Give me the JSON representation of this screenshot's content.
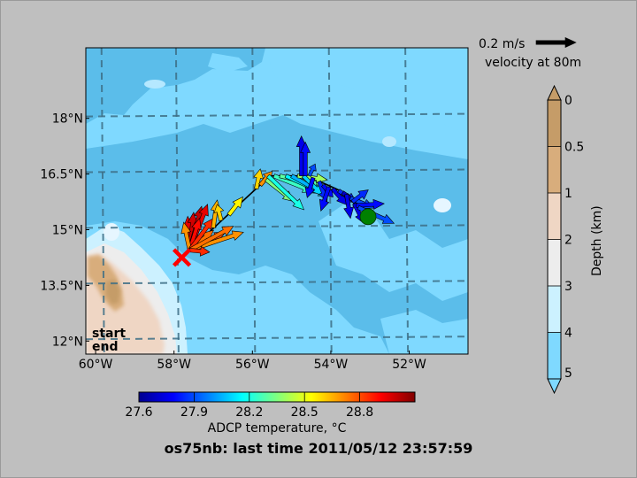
{
  "chart_data": {
    "type": "map",
    "title": "os75nb: last time 2011/05/12 23:57:59",
    "xlim": [
      -60.25,
      -50.5
    ],
    "ylim": [
      11.65,
      19.9
    ],
    "x_ticks": [
      -60,
      -58,
      -56,
      -54,
      -52
    ],
    "x_tick_labels": [
      "60°W",
      "58°W",
      "56°W",
      "54°W",
      "52°W"
    ],
    "y_ticks": [
      12,
      13.5,
      15,
      16.5,
      18
    ],
    "y_tick_labels": [
      "12°N",
      "13.5°N",
      "15°N",
      "16.5°N",
      "18°N"
    ],
    "grid": true,
    "track": [
      [
        -57.6,
        14.45
      ],
      [
        -55.55,
        16.45
      ],
      [
        -54.6,
        16.45
      ],
      [
        -53.55,
        15.95
      ],
      [
        -53.35,
        15.6
      ]
    ],
    "start": {
      "label": "start",
      "lon": -53.05,
      "lat": 15.35,
      "color": "#008000"
    },
    "end": {
      "label": "end",
      "lon": -57.8,
      "lat": 14.25,
      "color": "#ff0000"
    },
    "vectors": [
      {
        "lon": -57.6,
        "lat": 14.45,
        "u": -0.01,
        "v": 0.17,
        "t": 28.95
      },
      {
        "lon": -57.6,
        "lat": 14.45,
        "u": 0.02,
        "v": 0.19,
        "t": 28.98
      },
      {
        "lon": -57.6,
        "lat": 14.45,
        "u": 0.06,
        "v": 0.22,
        "t": 29.0
      },
      {
        "lon": -57.6,
        "lat": 14.45,
        "u": 0.09,
        "v": 0.23,
        "t": 28.95
      },
      {
        "lon": -57.6,
        "lat": 14.45,
        "u": 0.05,
        "v": 0.16,
        "t": 28.9
      },
      {
        "lon": -57.6,
        "lat": 14.45,
        "u": -0.03,
        "v": 0.14,
        "t": 28.7
      },
      {
        "lon": -57.6,
        "lat": 14.45,
        "u": 0.12,
        "v": 0.1,
        "t": 28.75
      },
      {
        "lon": -57.6,
        "lat": 14.45,
        "u": 0.18,
        "v": 0.09,
        "t": 28.8
      },
      {
        "lon": -57.6,
        "lat": 14.45,
        "u": 0.12,
        "v": 0.16,
        "t": 28.85
      },
      {
        "lon": -57.6,
        "lat": 14.45,
        "u": 0.27,
        "v": 0.09,
        "t": 28.7
      },
      {
        "lon": -57.6,
        "lat": 14.45,
        "u": 0.22,
        "v": 0.12,
        "t": 28.75
      },
      {
        "lon": -57.6,
        "lat": 14.45,
        "u": 0.1,
        "v": -0.01,
        "t": 28.85
      },
      {
        "lon": -57.0,
        "lat": 15.05,
        "u": 0.02,
        "v": 0.14,
        "t": 28.65
      },
      {
        "lon": -56.8,
        "lat": 15.25,
        "u": -0.02,
        "v": 0.08,
        "t": 28.6
      },
      {
        "lon": -56.6,
        "lat": 15.4,
        "u": 0.07,
        "v": 0.09,
        "t": 28.55
      },
      {
        "lon": -55.9,
        "lat": 16.1,
        "u": 0.02,
        "v": 0.1,
        "t": 28.6
      },
      {
        "lon": -55.8,
        "lat": 16.2,
        "u": 0.06,
        "v": 0.07,
        "t": 28.7
      },
      {
        "lon": -55.65,
        "lat": 16.35,
        "u": 0.14,
        "v": -0.11,
        "t": 28.35
      },
      {
        "lon": -55.6,
        "lat": 16.45,
        "u": 0.18,
        "v": -0.17,
        "t": 28.2
      },
      {
        "lon": -55.45,
        "lat": 16.45,
        "u": 0.2,
        "v": -0.08,
        "t": 28.25
      },
      {
        "lon": -55.3,
        "lat": 16.45,
        "u": 0.21,
        "v": -0.05,
        "t": 28.3
      },
      {
        "lon": -55.15,
        "lat": 16.45,
        "u": 0.22,
        "v": -0.1,
        "t": 28.15
      },
      {
        "lon": -55.0,
        "lat": 16.45,
        "u": 0.16,
        "v": -0.09,
        "t": 28.05
      },
      {
        "lon": -54.85,
        "lat": 16.45,
        "u": 0.15,
        "v": -0.02,
        "t": 28.4
      },
      {
        "lon": -54.7,
        "lat": 16.45,
        "u": 0.1,
        "v": -0.1,
        "t": 28.1
      },
      {
        "lon": -54.75,
        "lat": 16.45,
        "u": 0.0,
        "v": 0.2,
        "t": 27.75
      },
      {
        "lon": -54.65,
        "lat": 16.45,
        "u": 0.0,
        "v": 0.17,
        "t": 27.8
      },
      {
        "lon": -54.55,
        "lat": 16.45,
        "u": 0.03,
        "v": 0.06,
        "t": 27.9
      },
      {
        "lon": -54.45,
        "lat": 16.4,
        "u": -0.03,
        "v": -0.1,
        "t": 27.8
      },
      {
        "lon": -54.3,
        "lat": 16.3,
        "u": 0.04,
        "v": -0.1,
        "t": 27.85
      },
      {
        "lon": -54.2,
        "lat": 16.2,
        "u": 0.05,
        "v": -0.06,
        "t": 27.8
      },
      {
        "lon": -54.05,
        "lat": 16.15,
        "u": -0.04,
        "v": -0.12,
        "t": 27.8
      },
      {
        "lon": -53.95,
        "lat": 16.1,
        "u": 0.07,
        "v": -0.08,
        "t": 27.75
      },
      {
        "lon": -53.8,
        "lat": 16.05,
        "u": 0.09,
        "v": -0.06,
        "t": 27.85
      },
      {
        "lon": -53.7,
        "lat": 16.0,
        "u": 0.11,
        "v": -0.08,
        "t": 27.7
      },
      {
        "lon": -53.6,
        "lat": 15.95,
        "u": 0.02,
        "v": -0.12,
        "t": 27.75
      },
      {
        "lon": -53.5,
        "lat": 15.85,
        "u": 0.12,
        "v": -0.05,
        "t": 27.9
      },
      {
        "lon": -53.45,
        "lat": 15.75,
        "u": 0.08,
        "v": 0.06,
        "t": 27.85
      },
      {
        "lon": -53.4,
        "lat": 15.7,
        "u": 0.05,
        "v": -0.1,
        "t": 27.75
      },
      {
        "lon": -53.35,
        "lat": 15.65,
        "u": 0.14,
        "v": 0.01,
        "t": 27.8
      },
      {
        "lon": -53.3,
        "lat": 15.6,
        "u": 0.18,
        "v": -0.08,
        "t": 27.9
      }
    ],
    "scale": {
      "value": 0.2,
      "label": "0.2 m/s",
      "caption": "velocity at 80m"
    },
    "colorbar_temperature": {
      "label": "ADCP temperature, °C",
      "ticks": [
        27.6,
        27.9,
        28.2,
        28.5,
        28.8
      ],
      "tick_labels": [
        "27.6",
        "27.9",
        "28.2",
        "28.5",
        "28.8"
      ],
      "range": [
        27.6,
        29.1
      ]
    },
    "colorbar_depth": {
      "label": "Depth (km)",
      "tick_labels": [
        "0",
        "0.5",
        "1",
        "2",
        "3",
        "4",
        "5"
      ],
      "colors": [
        "#c59c68",
        "#d8ad7c",
        "#efd6c4",
        "#ededed",
        "#ccf1ff",
        "#7fd9ff"
      ]
    }
  }
}
